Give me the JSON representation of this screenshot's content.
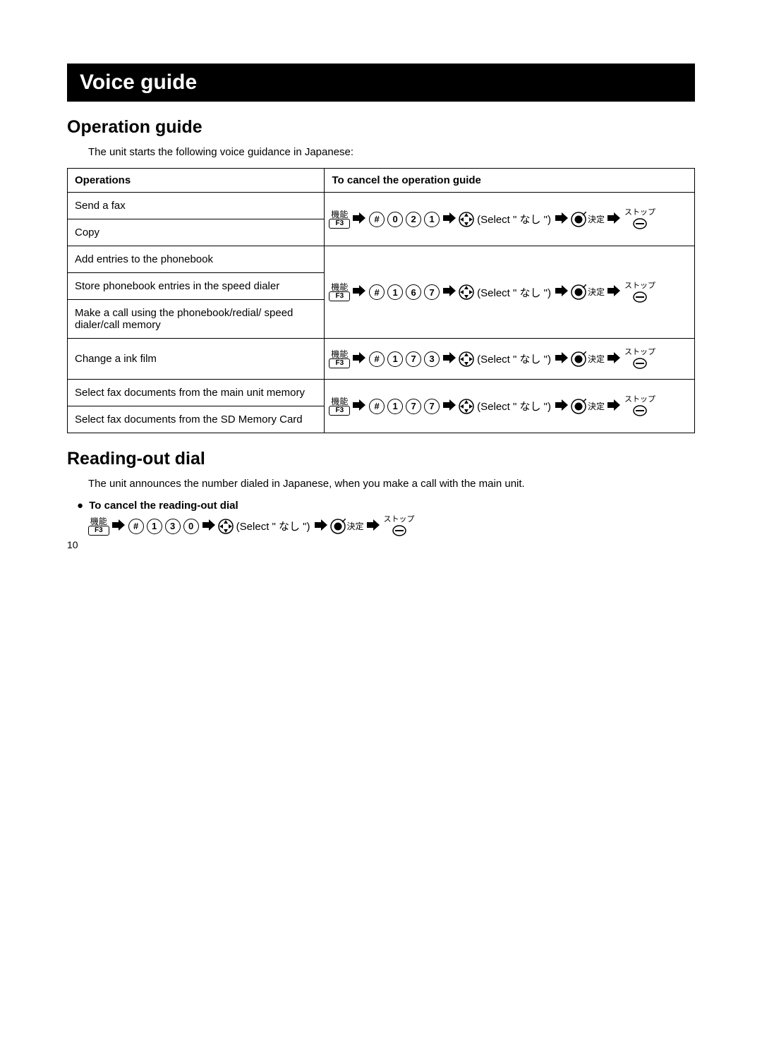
{
  "title": "Voice guide",
  "section_operation": {
    "heading": "Operation guide",
    "intro": "The unit starts the following voice guidance in Japanese:"
  },
  "table": {
    "header_ops": "Operations",
    "header_cancel": "To cancel the operation guide",
    "rows": {
      "r1": "Send a fax",
      "r2": "Copy",
      "r3": "Add entries to the phonebook",
      "r4": "Store phonebook entries in the speed dialer",
      "r5": "Make a call using the phonebook/redial/ speed dialer/call memory",
      "r6": "Change a ink film",
      "r7": "Select fax documents from the main unit memory",
      "r8": "Select fax documents from the SD Memory Card"
    }
  },
  "sequences": {
    "codes": {
      "g1": [
        "0",
        "2",
        "1"
      ],
      "g2": [
        "1",
        "6",
        "7"
      ],
      "g3": [
        "1",
        "7",
        "3"
      ],
      "g4": [
        "1",
        "7",
        "7"
      ],
      "g5": [
        "1",
        "3",
        "0"
      ]
    },
    "fkey_jp": "機能",
    "fkey_label": "F3",
    "hash": "#",
    "select_pre": " (Select \" ",
    "select_jp": "なし",
    "select_post": " \") ",
    "enter_jp": "決定",
    "stop_jp": "ストップ"
  },
  "section_reading": {
    "heading": "Reading-out dial",
    "intro": "The unit announces the number dialed in Japanese, when you make a call with the main unit.",
    "bullet": "To cancel the  reading-out dial"
  },
  "page_number": "10",
  "colors": {
    "title_bg": "#000000",
    "title_fg": "#ffffff",
    "border": "#000000",
    "text": "#000000",
    "page_bg": "#ffffff"
  }
}
